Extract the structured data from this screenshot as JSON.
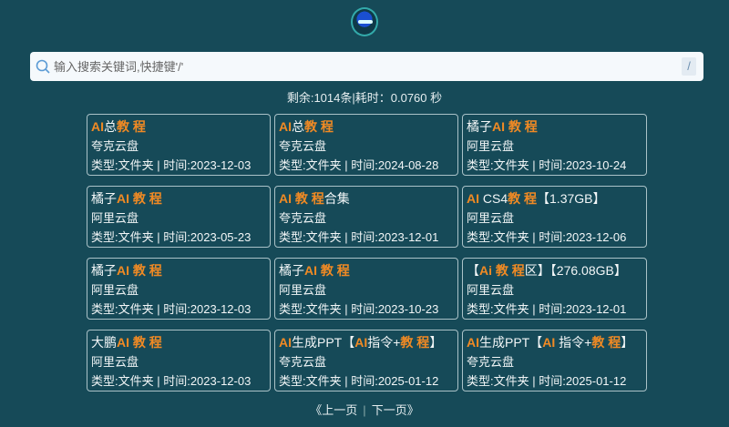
{
  "logo_alt": "",
  "search": {
    "placeholder": "输入搜索关键词,快捷键'/'",
    "shortcut": "/"
  },
  "stats": "剩余:1014条|耗时：0.0760 秒",
  "highlight_color": "#f08a24",
  "results": [
    {
      "title": [
        {
          "t": "AI",
          "hl": true
        },
        {
          "t": "总",
          "hl": false
        },
        {
          "t": "教 程",
          "hl": true
        }
      ],
      "source": "夸克云盘",
      "meta": "类型:文件夹 | 时间:2023-12-03"
    },
    {
      "title": [
        {
          "t": "AI",
          "hl": true
        },
        {
          "t": "总",
          "hl": false
        },
        {
          "t": "教 程",
          "hl": true
        }
      ],
      "source": "夸克云盘",
      "meta": "类型:文件夹 | 时间:2024-08-28"
    },
    {
      "title": [
        {
          "t": "橘子",
          "hl": false
        },
        {
          "t": "AI 教 程",
          "hl": true
        }
      ],
      "source": "阿里云盘",
      "meta": "类型:文件夹 | 时间:2023-10-24"
    },
    {
      "title": [
        {
          "t": "橘子",
          "hl": false
        },
        {
          "t": "AI 教 程",
          "hl": true
        }
      ],
      "source": "阿里云盘",
      "meta": "类型:文件夹 | 时间:2023-05-23"
    },
    {
      "title": [
        {
          "t": "AI 教 程",
          "hl": true
        },
        {
          "t": "合集",
          "hl": false
        }
      ],
      "source": "夸克云盘",
      "meta": "类型:文件夹 | 时间:2023-12-01"
    },
    {
      "title": [
        {
          "t": "AI",
          "hl": true
        },
        {
          "t": " CS4",
          "hl": false
        },
        {
          "t": "教 程",
          "hl": true
        },
        {
          "t": "【1.37GB】",
          "hl": false
        }
      ],
      "source": "阿里云盘",
      "meta": "类型:文件夹 | 时间:2023-12-06"
    },
    {
      "title": [
        {
          "t": "橘子",
          "hl": false
        },
        {
          "t": "AI 教 程",
          "hl": true
        }
      ],
      "source": "阿里云盘",
      "meta": "类型:文件夹 | 时间:2023-12-03"
    },
    {
      "title": [
        {
          "t": "橘子",
          "hl": false
        },
        {
          "t": "AI 教 程",
          "hl": true
        }
      ],
      "source": "阿里云盘",
      "meta": "类型:文件夹 | 时间:2023-10-23"
    },
    {
      "title": [
        {
          "t": "【",
          "hl": false
        },
        {
          "t": "Ai  教 程",
          "hl": true
        },
        {
          "t": "区】【276.08GB】",
          "hl": false
        }
      ],
      "source": "阿里云盘",
      "meta": "类型:文件夹 | 时间:2023-12-01"
    },
    {
      "title": [
        {
          "t": "大鹏",
          "hl": false
        },
        {
          "t": "AI 教 程",
          "hl": true
        }
      ],
      "source": "阿里云盘",
      "meta": "类型:文件夹 | 时间:2023-12-03"
    },
    {
      "title": [
        {
          "t": "AI",
          "hl": true
        },
        {
          "t": "生成PPT【",
          "hl": false
        },
        {
          "t": "AI",
          "hl": true
        },
        {
          "t": "指令+",
          "hl": false
        },
        {
          "t": "教 程",
          "hl": true
        },
        {
          "t": "】",
          "hl": false
        }
      ],
      "source": "夸克云盘",
      "meta": "类型:文件夹 | 时间:2025-01-12"
    },
    {
      "title": [
        {
          "t": "AI",
          "hl": true
        },
        {
          "t": "生成PPT【",
          "hl": false
        },
        {
          "t": "AI",
          "hl": true
        },
        {
          "t": " 指令+",
          "hl": false
        },
        {
          "t": "教 程",
          "hl": true
        },
        {
          "t": "】",
          "hl": false
        }
      ],
      "source": "夸克云盘",
      "meta": "类型:文件夹 | 时间:2025-01-12"
    }
  ],
  "pager": {
    "prev": "《上一页",
    "sep": "|",
    "next": "下一页》"
  }
}
